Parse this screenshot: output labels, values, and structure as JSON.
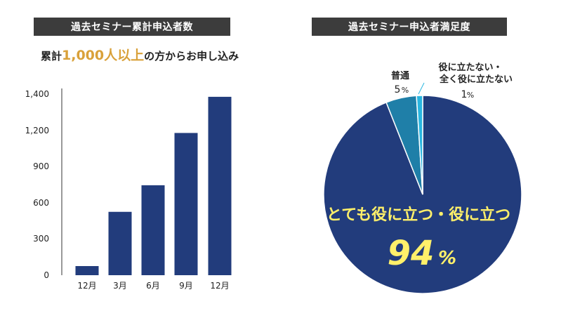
{
  "chart_data": [
    {
      "type": "bar",
      "title": "過去セミナー累計申込者数",
      "subtitle_prefix": "累計",
      "subtitle_highlight": "1,000人以上",
      "subtitle_suffix": "の方からお申し込み",
      "categories": [
        "12月",
        "3月",
        "6月",
        "9月",
        "12月"
      ],
      "values": [
        75,
        525,
        745,
        1180,
        1385
      ],
      "ytick_labels": [
        "0",
        "300",
        "600",
        "900",
        "1,200",
        "1,400"
      ],
      "grid": false,
      "bar_color": "#223c7c"
    },
    {
      "type": "pie",
      "title": "過去セミナー申込者満足度",
      "slices": [
        {
          "label": "とても役に立つ・役に立つ",
          "value": 94,
          "display_value": "94",
          "unit": "%",
          "color": "#223c7c"
        },
        {
          "label": "普通",
          "value": 5,
          "display_value": "5",
          "unit": "%",
          "color": "#1f7fa8"
        },
        {
          "label_line1": "役に立たない・",
          "label_line2": "全く役に立たない",
          "value": 1,
          "display_value": "1",
          "unit": "%",
          "color": "#29b6e0"
        }
      ]
    }
  ]
}
